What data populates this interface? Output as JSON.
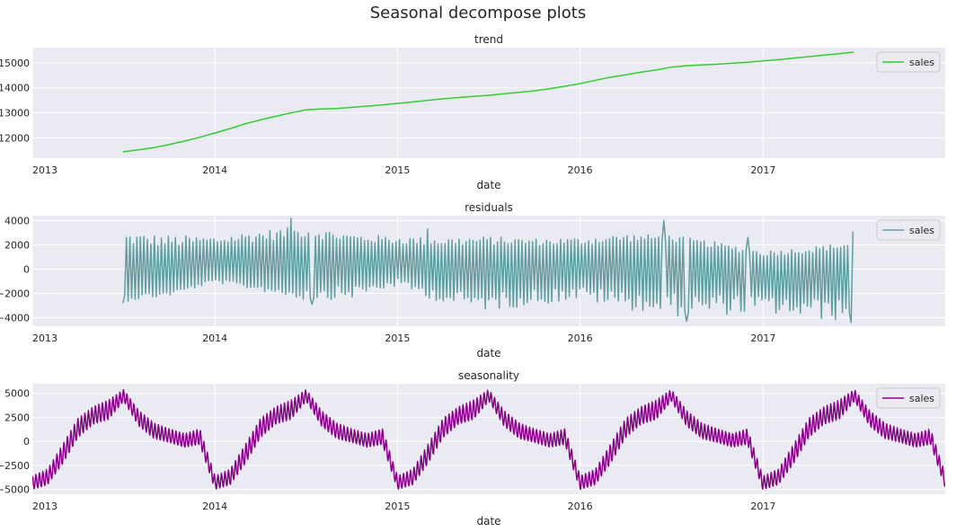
{
  "figure": {
    "title": "Seasonal decompose plots"
  },
  "chart_data": [
    {
      "type": "line",
      "title": "trend",
      "xlabel": "date",
      "ylabel": "",
      "xlim": [
        "2013-01-01",
        "2017-12-31"
      ],
      "ylim": [
        11200,
        15600
      ],
      "xticks": [
        "2013",
        "2014",
        "2015",
        "2016",
        "2017"
      ],
      "yticks": [
        12000,
        13000,
        14000,
        15000
      ],
      "ytick_labels": [
        "12000",
        "13000",
        "14000",
        "15000"
      ],
      "grid": true,
      "legend": "upper right",
      "series": [
        {
          "name": "sales",
          "color": "#32CD32",
          "style": "smooth",
          "x": [
            "2013-07-01",
            "2013-08-01",
            "2013-09-01",
            "2013-10-01",
            "2013-11-01",
            "2013-12-01",
            "2014-01-01",
            "2014-02-01",
            "2014-03-01",
            "2014-04-01",
            "2014-05-01",
            "2014-06-01",
            "2014-07-01",
            "2014-08-01",
            "2014-09-01",
            "2014-10-01",
            "2014-11-01",
            "2014-12-01",
            "2015-01-01",
            "2015-02-01",
            "2015-03-01",
            "2015-04-01",
            "2015-05-01",
            "2015-06-01",
            "2015-07-01",
            "2015-08-01",
            "2015-09-01",
            "2015-10-01",
            "2015-11-01",
            "2015-12-01",
            "2016-01-01",
            "2016-02-01",
            "2016-03-01",
            "2016-04-01",
            "2016-05-01",
            "2016-06-01",
            "2016-07-01",
            "2016-08-01",
            "2016-09-01",
            "2016-10-01",
            "2016-11-01",
            "2016-12-01",
            "2017-01-01",
            "2017-02-01",
            "2017-03-01",
            "2017-04-01",
            "2017-05-01",
            "2017-06-01",
            "2017-07-01"
          ],
          "y": [
            11450,
            11530,
            11620,
            11740,
            11880,
            12030,
            12200,
            12380,
            12560,
            12720,
            12860,
            13000,
            13120,
            13160,
            13180,
            13220,
            13270,
            13320,
            13380,
            13440,
            13500,
            13560,
            13610,
            13660,
            13700,
            13760,
            13820,
            13880,
            13960,
            14060,
            14170,
            14300,
            14420,
            14520,
            14620,
            14710,
            14820,
            14880,
            14910,
            14940,
            14980,
            15020,
            15070,
            15120,
            15180,
            15240,
            15300,
            15360,
            15420
          ]
        }
      ]
    },
    {
      "type": "line",
      "title": "residuals",
      "xlabel": "date",
      "ylabel": "",
      "xlim": [
        "2013-01-01",
        "2017-12-31"
      ],
      "ylim": [
        -4700,
        4400
      ],
      "xticks": [
        "2013",
        "2014",
        "2015",
        "2016",
        "2017"
      ],
      "yticks": [
        -4000,
        -2000,
        0,
        2000,
        4000
      ],
      "ytick_labels": [
        "−4000",
        "−2000",
        "0",
        "2000",
        "4000"
      ],
      "grid": true,
      "legend": "upper right",
      "series": [
        {
          "name": "sales",
          "color": "#5F9EA0",
          "style": "weekly-oscillation",
          "x_start": "2013-07-01",
          "x_end": "2017-07-02",
          "period_days": 7,
          "center_x": [
            "2013-07-01",
            "2013-10-01",
            "2014-01-01",
            "2014-04-01",
            "2014-07-01",
            "2014-10-01",
            "2015-01-01",
            "2015-04-01",
            "2015-07-01",
            "2015-10-01",
            "2016-01-01",
            "2016-04-01",
            "2016-07-01",
            "2016-10-01",
            "2017-01-01",
            "2017-04-01",
            "2017-07-01"
          ],
          "center_y": [
            -1200,
            -1300,
            -400,
            -600,
            -200,
            0,
            0,
            -300,
            -200,
            200,
            0,
            100,
            400,
            100,
            -400,
            -300,
            0
          ],
          "upper": [
            3000,
            2800,
            2700,
            3200,
            3500,
            2900,
            2700,
            2600,
            2700,
            2500,
            2600,
            2900,
            2800,
            2200,
            1500,
            1800,
            2300
          ],
          "lower": [
            -2700,
            -2200,
            -1100,
            -1800,
            -2600,
            -2400,
            -1400,
            -2800,
            -3400,
            -3000,
            -2500,
            -3300,
            -3900,
            -3800,
            -3600,
            -4100,
            -4300
          ],
          "spikes": [
            [
              "2014-06-01",
              4200
            ],
            [
              "2016-06-15",
              4000
            ],
            [
              "2016-12-01",
              2600
            ],
            [
              "2015-03-01",
              3300
            ],
            [
              "2017-07-01",
              3100
            ],
            [
              "2013-07-01",
              -2800
            ],
            [
              "2014-07-15",
              -2900
            ],
            [
              "2016-08-01",
              -4300
            ],
            [
              "2017-06-25",
              -4400
            ]
          ]
        }
      ]
    },
    {
      "type": "line",
      "title": "seasonality",
      "xlabel": "date",
      "ylabel": "",
      "xlim": [
        "2013-01-01",
        "2017-12-31"
      ],
      "ylim": [
        -5500,
        6000
      ],
      "xticks": [
        "2013",
        "2014",
        "2015",
        "2016",
        "2017"
      ],
      "yticks": [
        -5000,
        -2500,
        0,
        2500,
        5000
      ],
      "ytick_labels": [
        "−5000",
        "−2500",
        "0",
        "2500",
        "5000"
      ],
      "grid": true,
      "legend": "upper right",
      "series": [
        {
          "name": "sales",
          "color": "#8B008B",
          "style": "yearly-pattern-with-weekly-oscillation",
          "x_start": "2013-01-01",
          "x_end": "2017-12-31",
          "period_days": 7,
          "yearly_profile_month": [
            0,
            1,
            2,
            3,
            4,
            5,
            6,
            7,
            8,
            9,
            10,
            11,
            12
          ],
          "yearly_profile_center": [
            -4300,
            -3700,
            -1300,
            1400,
            2700,
            3300,
            4800,
            2400,
            1100,
            600,
            100,
            500,
            -4300
          ],
          "yearly_profile_amplitude": [
            700,
            800,
            1000,
            1000,
            900,
            1000,
            600,
            800,
            800,
            700,
            700,
            800,
            700
          ]
        }
      ]
    }
  ]
}
